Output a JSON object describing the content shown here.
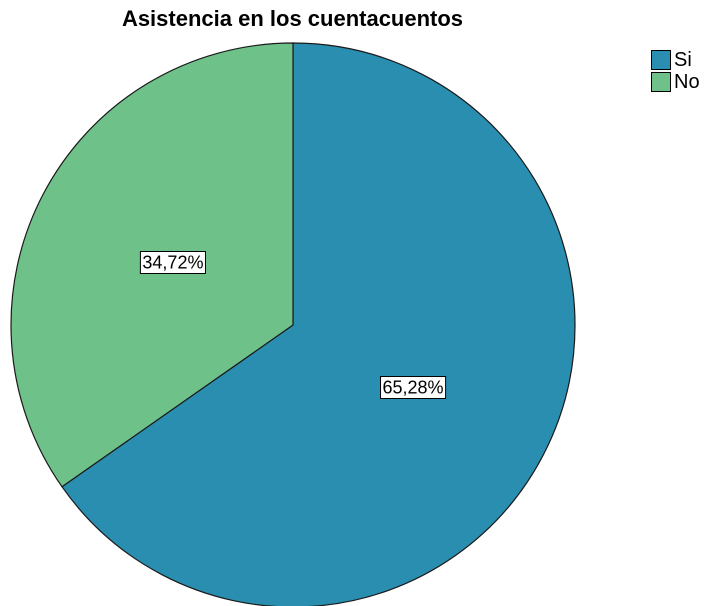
{
  "chart_data": {
    "type": "pie",
    "title": "Asistencia en los cuentacuentos",
    "start_angle_deg": 0,
    "direction": "clockwise",
    "legend_position": "top-right",
    "slices": [
      {
        "name": "Si",
        "value": 65.28,
        "label": "65,28%",
        "color": "#2a8eb0"
      },
      {
        "name": "No",
        "value": 34.72,
        "label": "34,72%",
        "color": "#6fc18a"
      }
    ]
  }
}
